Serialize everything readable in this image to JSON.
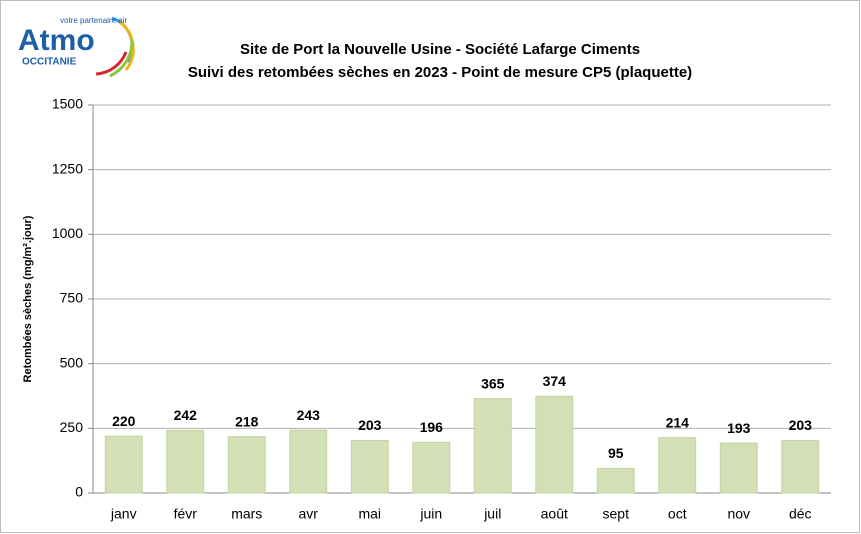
{
  "logo": {
    "name": "Atmo",
    "tagline": "votre partenaire air",
    "region": "OCCITANIE"
  },
  "chart_data": {
    "type": "bar",
    "title": "Site de Port la Nouvelle Usine - Société Lafarge Ciments",
    "subtitle": "Suivi des retombées sèches en 2023 - Point de mesure CP5 (plaquette)",
    "y_label": "Retombées sèches (mg/m².jour)",
    "categories": [
      "janv",
      "févr",
      "mars",
      "avr",
      "mai",
      "juin",
      "juil",
      "août",
      "sept",
      "oct",
      "nov",
      "déc"
    ],
    "values": [
      220,
      242,
      218,
      243,
      203,
      196,
      365,
      374,
      95,
      214,
      193,
      203
    ],
    "color": "#d3e0b5",
    "ylim": [
      0,
      1500
    ],
    "yticks": [
      0,
      250,
      500,
      750,
      1000,
      1250,
      1500
    ],
    "grid": true
  }
}
